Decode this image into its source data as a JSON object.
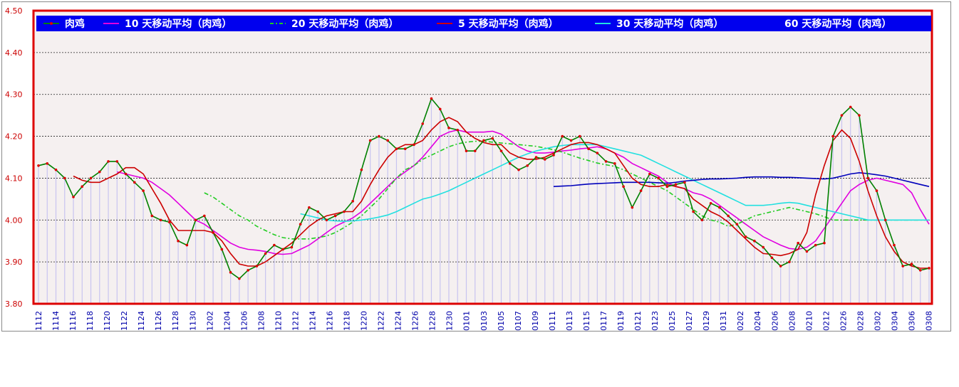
{
  "chart_data": {
    "type": "line",
    "title": "",
    "ylim": [
      3.8,
      4.5
    ],
    "yticks": [
      "3.80",
      "3.90",
      "4.00",
      "4.10",
      "4.20",
      "4.30",
      "4.40",
      "4.50"
    ],
    "grid": true,
    "legend_position": "top",
    "x_tick_labels": [
      "1112",
      "1114",
      "1116",
      "1118",
      "1120",
      "1122",
      "1124",
      "1126",
      "1128",
      "1130",
      "1202",
      "1204",
      "1206",
      "1208",
      "1210",
      "1212",
      "1214",
      "1216",
      "1218",
      "1220",
      "1222",
      "1224",
      "1226",
      "1228",
      "1230",
      "0101",
      "0103",
      "0105",
      "0107",
      "0109",
      "0111",
      "0113",
      "0115",
      "0117",
      "0119",
      "0121",
      "0123",
      "0125",
      "0127",
      "0129",
      "0131",
      "0202",
      "0204",
      "0206",
      "0208",
      "0210",
      "0212",
      "0226",
      "0228",
      "0302",
      "0304",
      "0306",
      "0308"
    ],
    "series": [
      {
        "name": "肉鸡",
        "color": "#008000",
        "style": "solid-dots",
        "values": [
          4.13,
          4.135,
          4.12,
          4.1,
          4.055,
          4.08,
          4.1,
          4.115,
          4.14,
          4.14,
          4.11,
          4.09,
          4.07,
          4.01,
          4.0,
          3.995,
          3.95,
          3.94,
          4.0,
          4.01,
          3.97,
          3.93,
          3.875,
          3.86,
          3.88,
          3.89,
          3.92,
          3.94,
          3.93,
          3.935,
          3.99,
          4.03,
          4.02,
          4.0,
          4.01,
          4.02,
          4.045,
          4.12,
          4.19,
          4.2,
          4.19,
          4.17,
          4.17,
          4.18,
          4.23,
          4.29,
          4.265,
          4.22,
          4.215,
          4.165,
          4.165,
          4.19,
          4.195,
          4.165,
          4.135,
          4.12,
          4.13,
          4.15,
          4.145,
          4.155,
          4.2,
          4.19,
          4.2,
          4.17,
          4.16,
          4.14,
          4.135,
          4.08,
          4.03,
          4.07,
          4.11,
          4.1,
          4.08,
          4.085,
          4.09,
          4.02,
          4.0,
          4.04,
          4.03,
          4.01,
          3.99,
          3.96,
          3.95,
          3.935,
          3.91,
          3.89,
          3.9,
          3.945,
          3.925,
          3.94,
          3.945,
          4.2,
          4.25,
          4.27,
          4.25,
          4.1,
          4.07,
          4.0,
          3.94,
          3.89,
          3.895,
          3.88,
          3.885
        ]
      },
      {
        "name": "10 天移动平均（肉鸡）",
        "color": "#e000e0",
        "style": "solid",
        "values": [
          null,
          null,
          null,
          null,
          null,
          null,
          null,
          null,
          null,
          4.115,
          4.11,
          4.105,
          4.1,
          4.09,
          4.075,
          4.06,
          4.04,
          4.02,
          4.0,
          3.99,
          3.975,
          3.96,
          3.945,
          3.935,
          3.93,
          3.928,
          3.925,
          3.92,
          3.918,
          3.92,
          3.93,
          3.94,
          3.955,
          3.97,
          3.985,
          3.995,
          4.005,
          4.02,
          4.04,
          4.06,
          4.08,
          4.1,
          4.115,
          4.13,
          4.15,
          4.175,
          4.2,
          4.21,
          4.215,
          4.21,
          4.21,
          4.21,
          4.212,
          4.205,
          4.19,
          4.175,
          4.165,
          4.16,
          4.16,
          4.162,
          4.165,
          4.167,
          4.17,
          4.172,
          4.175,
          4.17,
          4.16,
          4.15,
          4.135,
          4.125,
          4.115,
          4.105,
          4.09,
          4.08,
          4.075,
          4.065,
          4.06,
          4.05,
          4.035,
          4.02,
          4.005,
          3.99,
          3.975,
          3.96,
          3.95,
          3.94,
          3.932,
          3.93,
          3.935,
          3.95,
          3.98,
          4.01,
          4.04,
          4.07,
          4.085,
          4.095,
          4.1,
          4.095,
          4.09,
          4.085,
          4.065,
          4.025,
          3.99
        ]
      },
      {
        "name": "20 天移动平均（肉鸡）",
        "color": "#22cc22",
        "style": "dashdot",
        "values": [
          null,
          null,
          null,
          null,
          null,
          null,
          null,
          null,
          null,
          null,
          null,
          null,
          null,
          null,
          null,
          null,
          null,
          null,
          null,
          4.065,
          4.055,
          4.04,
          4.025,
          4.01,
          4.0,
          3.985,
          3.975,
          3.965,
          3.958,
          3.955,
          3.955,
          3.955,
          3.958,
          3.962,
          3.97,
          3.982,
          3.995,
          4.01,
          4.03,
          4.05,
          4.075,
          4.1,
          4.12,
          4.13,
          4.145,
          4.155,
          4.165,
          4.175,
          4.182,
          4.186,
          4.188,
          4.188,
          4.186,
          4.184,
          4.182,
          4.18,
          4.178,
          4.176,
          4.172,
          4.168,
          4.162,
          4.155,
          4.148,
          4.142,
          4.136,
          4.132,
          4.128,
          4.12,
          4.11,
          4.1,
          4.09,
          4.08,
          4.07,
          4.055,
          4.04,
          4.025,
          4.01,
          4.0,
          3.995,
          3.985,
          3.99,
          4.0,
          4.01,
          4.015,
          4.02,
          4.025,
          4.03,
          4.025,
          4.02,
          4.015,
          4.008,
          4.0,
          4.0,
          4.0,
          4.0,
          4.0,
          4.0,
          4.0,
          4.0,
          4.0,
          4.0,
          4.0,
          4.0
        ]
      },
      {
        "name": "5 天移动平均（肉鸡）",
        "color": "#cc0000",
        "style": "solid",
        "values": [
          null,
          null,
          null,
          null,
          4.105,
          4.095,
          4.09,
          4.09,
          4.1,
          4.11,
          4.125,
          4.125,
          4.11,
          4.075,
          4.04,
          4.0,
          3.975,
          3.975,
          3.975,
          3.975,
          3.97,
          3.95,
          3.92,
          3.895,
          3.89,
          3.89,
          3.9,
          3.915,
          3.93,
          3.945,
          3.965,
          3.985,
          4.0,
          4.01,
          4.015,
          4.02,
          4.02,
          4.045,
          4.085,
          4.12,
          4.15,
          4.17,
          4.18,
          4.18,
          4.19,
          4.215,
          4.235,
          4.245,
          4.235,
          4.21,
          4.195,
          4.185,
          4.18,
          4.18,
          4.16,
          4.15,
          4.145,
          4.145,
          4.15,
          4.16,
          4.17,
          4.18,
          4.185,
          4.185,
          4.18,
          4.17,
          4.16,
          4.13,
          4.1,
          4.085,
          4.08,
          4.08,
          4.085,
          4.08,
          4.075,
          4.05,
          4.035,
          4.02,
          4.01,
          3.995,
          3.975,
          3.955,
          3.935,
          3.92,
          3.918,
          3.915,
          3.92,
          3.93,
          3.97,
          4.06,
          4.13,
          4.19,
          4.215,
          4.195,
          4.14,
          4.07,
          4.01,
          3.96,
          3.925,
          3.9,
          3.89,
          3.885,
          3.885
        ]
      },
      {
        "name": "30 天移动平均（肉鸡）",
        "color": "#22e0e0",
        "style": "solid",
        "values": [
          null,
          null,
          null,
          null,
          null,
          null,
          null,
          null,
          null,
          null,
          null,
          null,
          null,
          null,
          null,
          null,
          null,
          null,
          null,
          null,
          null,
          null,
          null,
          null,
          null,
          null,
          null,
          null,
          null,
          null,
          4.015,
          4.01,
          4.005,
          4.0,
          3.998,
          3.997,
          3.998,
          4.0,
          4.003,
          4.007,
          4.012,
          4.02,
          4.03,
          4.04,
          4.05,
          4.055,
          4.062,
          4.07,
          4.08,
          4.09,
          4.1,
          4.11,
          4.12,
          4.13,
          4.14,
          4.15,
          4.158,
          4.165,
          4.17,
          4.175,
          4.178,
          4.18,
          4.18,
          4.18,
          4.18,
          4.175,
          4.17,
          4.165,
          4.16,
          4.155,
          4.145,
          4.135,
          4.125,
          4.115,
          4.105,
          4.095,
          4.085,
          4.075,
          4.065,
          4.055,
          4.045,
          4.035,
          4.035,
          4.035,
          4.037,
          4.04,
          4.042,
          4.04,
          4.035,
          4.03,
          4.025,
          4.02,
          4.015,
          4.01,
          4.005,
          4.0,
          4.0,
          4.0,
          4.0,
          4.0,
          4.0,
          4.0,
          4.0
        ]
      },
      {
        "name": "60 天移动平均（肉鸡）",
        "color": "#0000bb",
        "style": "solid",
        "values": [
          null,
          null,
          null,
          null,
          null,
          null,
          null,
          null,
          null,
          null,
          null,
          null,
          null,
          null,
          null,
          null,
          null,
          null,
          null,
          null,
          null,
          null,
          null,
          null,
          null,
          null,
          null,
          null,
          null,
          null,
          null,
          null,
          null,
          null,
          null,
          null,
          null,
          null,
          null,
          null,
          null,
          null,
          null,
          null,
          null,
          null,
          null,
          null,
          null,
          null,
          null,
          null,
          null,
          null,
          null,
          null,
          null,
          null,
          null,
          4.08,
          4.081,
          4.082,
          4.084,
          4.086,
          4.087,
          4.088,
          4.089,
          4.09,
          4.09,
          4.09,
          4.09,
          4.089,
          4.088,
          4.09,
          4.093,
          4.095,
          4.097,
          4.098,
          4.098,
          4.099,
          4.1,
          4.102,
          4.103,
          4.103,
          4.103,
          4.102,
          4.102,
          4.101,
          4.1,
          4.099,
          4.098,
          4.1,
          4.105,
          4.11,
          4.113,
          4.111,
          4.108,
          4.105,
          4.1,
          4.095,
          4.09,
          4.085,
          4.08
        ]
      }
    ]
  },
  "legend": [
    {
      "label": "肉鸡",
      "color": "#008000"
    },
    {
      "label": "10 天移动平均（肉鸡）",
      "color": "#e000e0"
    },
    {
      "label": "20 天移动平均（肉鸡）",
      "color": "#22cc22"
    },
    {
      "label": "5 天移动平均（肉鸡）",
      "color": "#cc0000"
    },
    {
      "label": "30 天移动平均（肉鸡）",
      "color": "#22e0e0"
    },
    {
      "label": "60 天移动平均（肉鸡）",
      "color": "#0000bb"
    }
  ],
  "colors": {
    "legend_bar": "#0000ee",
    "plot_border": "#dd0000",
    "plot_background": "#f5f0f0",
    "volume_bar": "#c8c4f0",
    "grid_line": "#222222"
  }
}
